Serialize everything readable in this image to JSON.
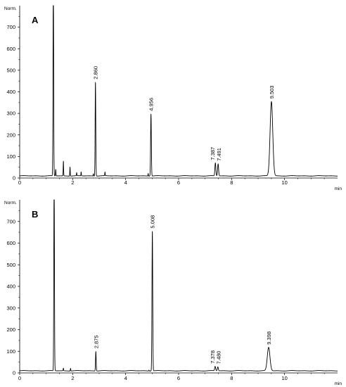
{
  "chart_data": [
    {
      "type": "line",
      "panel_label": "A",
      "ylabel": "Norm.",
      "xlabel": "min",
      "xlim": [
        0,
        12
      ],
      "ylim": [
        0,
        800
      ],
      "x_ticks": [
        "0",
        "2",
        "4",
        "6",
        "8",
        "10"
      ],
      "y_ticks": [
        "0",
        "100",
        "200",
        "300",
        "400",
        "500",
        "600",
        "700"
      ],
      "baseline": 10,
      "solvent_peak": {
        "x": 1.27,
        "y": 800
      },
      "peaks": [
        {
          "rt": 2.86,
          "height": 445,
          "label": "2.860"
        },
        {
          "rt": 4.956,
          "height": 298,
          "label": "4.956"
        },
        {
          "rt": 7.387,
          "height": 70,
          "label": "7.387"
        },
        {
          "rt": 7.491,
          "height": 66,
          "label": "7.491"
        },
        {
          "rt": 9.503,
          "height": 355,
          "label": "9.503"
        }
      ],
      "minor_peaks": [
        {
          "rt": 1.36,
          "height": 40
        },
        {
          "rt": 1.65,
          "height": 78
        },
        {
          "rt": 1.9,
          "height": 52
        },
        {
          "rt": 2.15,
          "height": 24
        },
        {
          "rt": 2.32,
          "height": 28
        },
        {
          "rt": 2.78,
          "height": 20
        },
        {
          "rt": 3.22,
          "height": 27
        },
        {
          "rt": 4.85,
          "height": 22
        }
      ]
    },
    {
      "type": "line",
      "panel_label": "B",
      "ylabel": "Norm.",
      "xlabel": "min",
      "xlim": [
        0,
        12
      ],
      "ylim": [
        0,
        800
      ],
      "x_ticks": [
        "0",
        "2",
        "4",
        "6",
        "8",
        "10"
      ],
      "y_ticks": [
        "0",
        "100",
        "200",
        "300",
        "400",
        "500",
        "600",
        "700"
      ],
      "baseline": 10,
      "solvent_peak": {
        "x": 1.3,
        "y": 800
      },
      "peaks": [
        {
          "rt": 2.875,
          "height": 100,
          "label": "2.875"
        },
        {
          "rt": 5.008,
          "height": 655,
          "label": "5.008"
        },
        {
          "rt": 7.378,
          "height": 30,
          "label": "7.378"
        },
        {
          "rt": 7.48,
          "height": 28,
          "label": "7.480"
        },
        {
          "rt": 9.398,
          "height": 118,
          "label": "9.398"
        }
      ],
      "minor_peaks": [
        {
          "rt": 1.65,
          "height": 22
        },
        {
          "rt": 1.92,
          "height": 22
        },
        {
          "rt": 4.88,
          "height": 14
        }
      ]
    }
  ]
}
